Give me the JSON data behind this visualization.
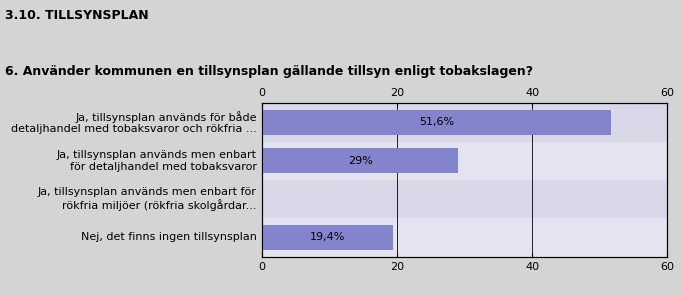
{
  "title": "3.10. TILLSYNSPLAN",
  "subtitle": "6. Använder kommunen en tillsynsplan gällande tillsyn enligt tobakslagen?",
  "categories": [
    "Ja, tillsynsplan används för både\ndetaljhandel med tobaksvaror och rökfria ...",
    "Ja, tillsynsplan används men enbart\nför detaljhandel med tobaksvaror",
    "Ja, tillsynsplan används men enbart för\nrökfria miljöer (rökfria skolgårdar...",
    "Nej, det finns ingen tillsynsplan"
  ],
  "values": [
    51.6,
    29.0,
    0.0,
    19.4
  ],
  "labels": [
    "51,6%",
    "29%",
    "",
    "19,4%"
  ],
  "bar_color": "#8484cc",
  "bg_color": "#d4d4d4",
  "plot_bg_color": "#dcdcec",
  "row_bg_even": "#d8d8e8",
  "row_bg_odd": "#e4e4f0",
  "xlim": [
    0,
    60
  ],
  "xticks": [
    0,
    20,
    40,
    60
  ],
  "title_fontsize": 9,
  "subtitle_fontsize": 9,
  "label_fontsize": 8,
  "tick_fontsize": 8
}
